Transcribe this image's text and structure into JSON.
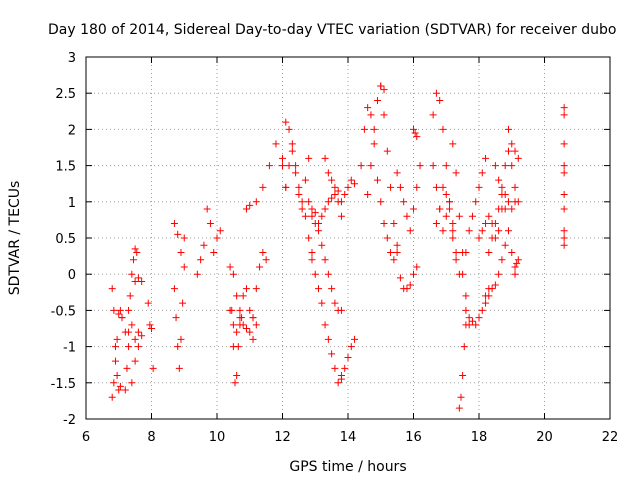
{
  "chart_data": {
    "type": "scatter",
    "title": "Day 180 of 2014, Sidereal Day-to-day VTEC variation (SDTVAR) for receiver dubo",
    "xlabel": "GPS time / hours",
    "ylabel": "SDTVAR / TECUs",
    "xlim": [
      6,
      22
    ],
    "ylim": [
      -2,
      3
    ],
    "xticks": [
      6,
      8,
      10,
      12,
      14,
      16,
      18,
      20,
      22
    ],
    "yticks": [
      -2,
      -1.5,
      -1,
      -0.5,
      0,
      0.5,
      1,
      1.5,
      2,
      2.5,
      3
    ],
    "grid": true,
    "marker": "plus",
    "color": "#ff0000",
    "series": [
      {
        "name": "s01",
        "x": [
          6.8,
          6.85,
          6.9,
          6.95,
          7.0,
          7.05,
          7.1
        ],
        "y": [
          -0.2,
          -0.5,
          -1.0,
          -1.4,
          -1.6,
          -1.55,
          -0.6
        ]
      },
      {
        "name": "s02",
        "x": [
          6.8,
          6.85,
          6.9,
          6.95,
          7.0,
          7.05,
          7.1
        ],
        "y": [
          -1.7,
          -1.5,
          -1.2,
          -0.9,
          -0.55,
          -0.5,
          -0.6
        ]
      },
      {
        "name": "s03",
        "x": [
          7.2,
          7.25,
          7.3,
          7.35,
          7.4,
          7.45,
          7.5,
          7.55
        ],
        "y": [
          -1.6,
          -1.3,
          -0.8,
          -0.3,
          0.0,
          0.2,
          0.35,
          0.3
        ]
      },
      {
        "name": "s04",
        "x": [
          7.2,
          7.3,
          7.4,
          7.5,
          7.6
        ],
        "y": [
          -0.8,
          -1.0,
          -1.5,
          -1.2,
          -0.8
        ]
      },
      {
        "name": "s05",
        "x": [
          7.3,
          7.4,
          7.5,
          7.6,
          7.7
        ],
        "y": [
          -0.5,
          -0.7,
          -0.9,
          -1.0,
          -0.85
        ]
      },
      {
        "name": "s06",
        "x": [
          7.5,
          7.6,
          7.7
        ],
        "y": [
          -0.1,
          -0.05,
          -0.1
        ]
      },
      {
        "name": "s07",
        "x": [
          7.9,
          7.95,
          8.0,
          8.05
        ],
        "y": [
          -0.4,
          -0.7,
          -0.75,
          -1.3
        ]
      },
      {
        "name": "s08",
        "x": [
          8.7,
          8.75,
          8.8,
          8.85,
          8.9,
          8.95,
          9.0
        ],
        "y": [
          -0.2,
          -0.6,
          -1.0,
          -1.3,
          -0.9,
          -0.4,
          0.1
        ]
      },
      {
        "name": "s09",
        "x": [
          8.7,
          8.8,
          8.9,
          9.0
        ],
        "y": [
          0.7,
          0.55,
          0.3,
          0.5
        ]
      },
      {
        "name": "s10",
        "x": [
          9.4,
          9.5,
          9.6,
          9.7,
          9.8,
          9.9,
          10.0,
          10.1
        ],
        "y": [
          0.0,
          0.2,
          0.4,
          0.9,
          0.7,
          0.3,
          0.5,
          0.6
        ]
      },
      {
        "name": "s11",
        "x": [
          10.4,
          10.45,
          10.5,
          10.55,
          10.6,
          10.65,
          10.7,
          10.75
        ],
        "y": [
          0.1,
          -0.5,
          -1.0,
          -1.5,
          -1.4,
          -1.0,
          -0.7,
          -0.6
        ]
      },
      {
        "name": "s12",
        "x": [
          10.4,
          10.5,
          10.6,
          10.7,
          10.8,
          10.9,
          11.0,
          11.1,
          11.2
        ],
        "y": [
          -0.5,
          -0.7,
          -0.8,
          -0.6,
          -0.3,
          -0.2,
          -0.5,
          -0.9,
          -0.7
        ]
      },
      {
        "name": "s13",
        "x": [
          10.5,
          10.6,
          10.7,
          10.8,
          10.9,
          11.0,
          11.1
        ],
        "y": [
          0.0,
          -0.3,
          -0.5,
          -0.7,
          -0.75,
          -0.8,
          -0.6
        ]
      },
      {
        "name": "s14",
        "x": [
          11.1,
          11.2,
          11.3,
          11.4,
          11.5
        ],
        "y": [
          -0.6,
          -0.2,
          0.1,
          0.3,
          0.2
        ]
      },
      {
        "name": "s15",
        "x": [
          10.9,
          11.0,
          11.2,
          11.4,
          11.6,
          11.8,
          12.0,
          12.1
        ],
        "y": [
          0.9,
          0.95,
          1.0,
          1.2,
          1.5,
          1.8,
          1.6,
          1.2
        ]
      },
      {
        "name": "s16",
        "x": [
          12.0,
          12.1,
          12.2,
          12.3,
          12.4,
          12.5,
          12.6,
          12.7,
          12.8,
          12.9
        ],
        "y": [
          1.5,
          2.1,
          2.0,
          1.8,
          1.5,
          1.2,
          1.0,
          0.8,
          0.5,
          0.3
        ]
      },
      {
        "name": "s17",
        "x": [
          12.1,
          12.2,
          12.3,
          12.4,
          12.5,
          12.6,
          12.7,
          12.8
        ],
        "y": [
          1.2,
          1.5,
          1.7,
          1.4,
          1.1,
          0.9,
          1.3,
          1.6
        ]
      },
      {
        "name": "s18",
        "x": [
          12.9,
          13.0,
          13.1,
          13.2,
          13.3,
          13.4,
          13.5,
          13.6,
          13.7,
          13.8
        ],
        "y": [
          0.2,
          0.0,
          -0.2,
          -0.4,
          -0.7,
          -0.9,
          -1.1,
          -1.3,
          -1.5,
          -1.45
        ]
      },
      {
        "name": "s19",
        "x": [
          13.8,
          13.9,
          14.0,
          14.1,
          14.2
        ],
        "y": [
          -1.4,
          -1.3,
          -1.15,
          -1.0,
          -0.9
        ]
      },
      {
        "name": "s20",
        "x": [
          12.9,
          13.0,
          13.1,
          13.2,
          13.3,
          13.4,
          13.5,
          13.6,
          13.7,
          13.8
        ],
        "y": [
          0.8,
          0.7,
          0.6,
          0.4,
          0.2,
          0.0,
          -0.2,
          -0.4,
          -0.5,
          -0.5
        ]
      },
      {
        "name": "s21",
        "x": [
          12.8,
          12.9,
          13.0,
          13.1,
          13.2,
          13.3,
          13.4,
          13.5,
          13.6,
          13.7,
          13.8,
          13.9,
          14.0,
          14.1,
          14.2
        ],
        "y": [
          1.0,
          0.9,
          0.85,
          0.7,
          0.8,
          0.9,
          1.0,
          1.05,
          1.1,
          1.15,
          1.0,
          1.1,
          1.2,
          1.3,
          1.25
        ]
      },
      {
        "name": "s22",
        "x": [
          13.3,
          13.4,
          13.5,
          13.6,
          13.7,
          13.8
        ],
        "y": [
          1.6,
          1.4,
          1.3,
          1.2,
          1.0,
          0.8
        ]
      },
      {
        "name": "s23",
        "x": [
          14.4,
          14.5,
          14.6,
          14.7,
          14.8,
          14.9,
          15.0,
          15.1
        ],
        "y": [
          1.5,
          2.0,
          2.3,
          2.2,
          2.0,
          2.4,
          2.6,
          2.55
        ]
      },
      {
        "name": "s24",
        "x": [
          15.0,
          15.1,
          15.2,
          15.3,
          15.4,
          15.5,
          15.6,
          15.7,
          15.8,
          15.9,
          16.0,
          16.1
        ],
        "y": [
          2.6,
          2.2,
          1.7,
          1.2,
          0.7,
          0.3,
          -0.05,
          -0.2,
          -0.2,
          -0.15,
          0.0,
          0.1
        ]
      },
      {
        "name": "s25",
        "x": [
          14.6,
          14.7,
          14.8,
          14.9,
          15.0,
          15.1,
          15.2,
          15.3,
          15.4,
          15.5
        ],
        "y": [
          1.1,
          1.5,
          1.8,
          1.3,
          1.0,
          0.7,
          0.5,
          0.3,
          0.2,
          0.4
        ]
      },
      {
        "name": "s26",
        "x": [
          15.5,
          15.6,
          15.7,
          15.8,
          15.9,
          16.0,
          16.1,
          16.2
        ],
        "y": [
          1.4,
          1.2,
          1.0,
          0.8,
          0.6,
          0.9,
          1.2,
          1.5
        ]
      },
      {
        "name": "s27",
        "x": [
          16.0,
          16.05,
          16.1
        ],
        "y": [
          2.0,
          1.95,
          1.9
        ]
      },
      {
        "name": "s28",
        "x": [
          16.6,
          16.7,
          16.8,
          16.9,
          17.0,
          17.1,
          17.2
        ],
        "y": [
          2.2,
          2.5,
          2.4,
          2.0,
          1.5,
          1.0,
          0.5
        ]
      },
      {
        "name": "s29",
        "x": [
          16.6,
          16.7,
          16.8,
          16.9,
          17.0,
          17.1,
          17.2,
          17.3
        ],
        "y": [
          1.5,
          1.2,
          0.9,
          0.6,
          0.8,
          1.0,
          0.7,
          0.2
        ]
      },
      {
        "name": "s30",
        "x": [
          16.7,
          16.8,
          16.9,
          17.0,
          17.1,
          17.2,
          17.3,
          17.4
        ],
        "y": [
          0.7,
          0.9,
          1.2,
          1.1,
          0.9,
          0.6,
          0.3,
          0.0
        ]
      },
      {
        "name": "s31",
        "x": [
          17.2,
          17.3,
          17.4,
          17.5,
          17.6,
          17.7
        ],
        "y": [
          1.8,
          1.4,
          0.8,
          0.3,
          -0.3,
          -0.7
        ]
      },
      {
        "name": "s32",
        "x": [
          17.6,
          17.7,
          17.8,
          17.9,
          18.0,
          18.1,
          18.2,
          18.3
        ],
        "y": [
          -0.7,
          -0.6,
          -0.65,
          -0.7,
          -0.6,
          -0.5,
          -0.3,
          -0.2
        ]
      },
      {
        "name": "s33",
        "x": [
          17.4,
          17.45,
          17.5,
          17.55,
          17.6
        ],
        "y": [
          -1.85,
          -1.7,
          -1.4,
          -1.0,
          -0.5
        ]
      },
      {
        "name": "s34",
        "x": [
          17.5,
          17.6,
          17.7,
          17.8,
          17.9,
          18.0,
          18.1,
          18.2
        ],
        "y": [
          0.0,
          0.3,
          0.6,
          0.8,
          1.0,
          1.2,
          1.4,
          1.6
        ]
      },
      {
        "name": "s35",
        "x": [
          18.0,
          18.1,
          18.2,
          18.3,
          18.4,
          18.5,
          18.6,
          18.7,
          18.8,
          18.9,
          19.0,
          19.1
        ],
        "y": [
          0.5,
          0.6,
          0.7,
          0.8,
          0.7,
          0.5,
          0.6,
          0.9,
          1.1,
          1.0,
          0.9,
          1.0
        ]
      },
      {
        "name": "s36",
        "x": [
          18.2,
          18.3,
          18.4,
          18.5,
          18.6,
          18.7,
          18.8
        ],
        "y": [
          -0.4,
          -0.3,
          -0.2,
          -0.15,
          0.0,
          0.2,
          0.4
        ]
      },
      {
        "name": "s37",
        "x": [
          18.5,
          18.6,
          18.7,
          18.8,
          18.9,
          19.0,
          19.1
        ],
        "y": [
          1.5,
          1.3,
          1.1,
          0.9,
          0.6,
          0.3,
          0.0
        ]
      },
      {
        "name": "s38",
        "x": [
          18.9,
          19.0,
          19.1,
          19.2
        ],
        "y": [
          2.0,
          1.8,
          1.7,
          1.6
        ]
      },
      {
        "name": "s39",
        "x": [
          18.3,
          18.4,
          18.5,
          18.6,
          18.7,
          18.8,
          18.9,
          19.0,
          19.1,
          19.2
        ],
        "y": [
          0.3,
          0.5,
          0.7,
          0.9,
          1.2,
          1.5,
          1.7,
          1.5,
          1.2,
          1.0
        ]
      },
      {
        "name": "s40",
        "x": [
          19.1,
          19.15,
          19.2
        ],
        "y": [
          0.1,
          0.15,
          0.2
        ]
      },
      {
        "name": "s41",
        "x": [
          20.6,
          20.6,
          20.6,
          20.6,
          20.6,
          20.6,
          20.6,
          20.6,
          20.6,
          20.6
        ],
        "y": [
          2.3,
          2.2,
          1.8,
          1.5,
          1.4,
          1.1,
          0.9,
          0.6,
          0.5,
          0.4
        ]
      }
    ]
  }
}
